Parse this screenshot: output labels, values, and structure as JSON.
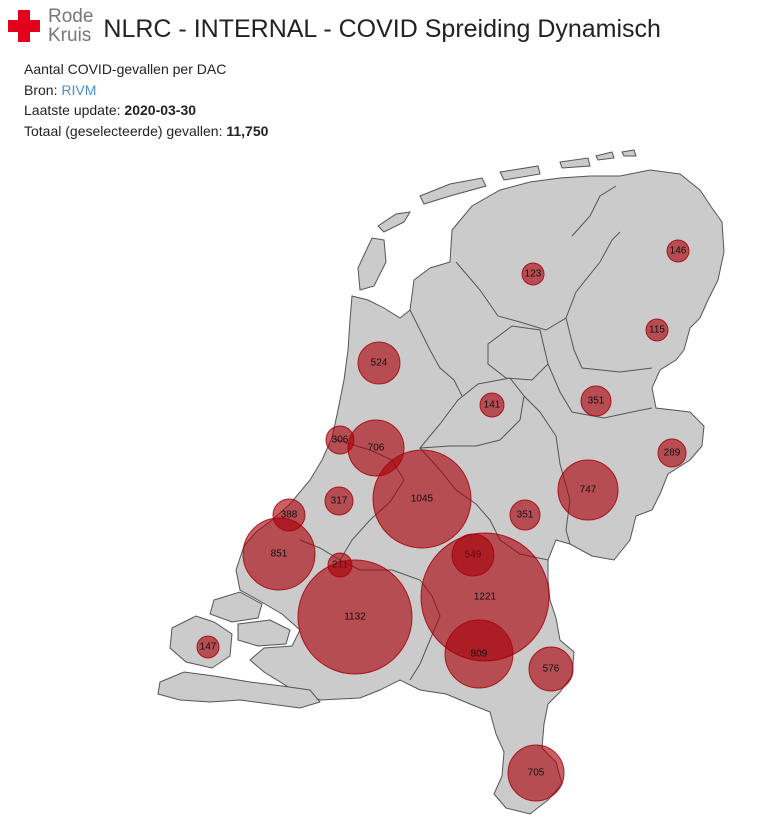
{
  "logo": {
    "line1": "Rode",
    "line2": "Kruis"
  },
  "title": "NLRC - INTERNAL - COVID Spreiding Dynamisch",
  "info": {
    "subtitle": "Aantal COVID-gevallen per DAC",
    "source_label": "Bron: ",
    "source_link": "RIVM",
    "update_label": "Laatste update: ",
    "update_value": "2020-03-30",
    "total_label": "Totaal (geselecteerde) gevallen: ",
    "total_value": "11,750"
  },
  "colors": {
    "bubble": "#a8000a",
    "land": "#cbcbcb",
    "link": "#4a8fd4",
    "brand": "#e3001b"
  },
  "map_data": {
    "unit": "cases",
    "regions": [
      {
        "id": "r1",
        "value": "123"
      },
      {
        "id": "r2",
        "value": "146"
      },
      {
        "id": "r3",
        "value": "115"
      },
      {
        "id": "r4",
        "value": "524"
      },
      {
        "id": "r5",
        "value": "141"
      },
      {
        "id": "r6",
        "value": "351"
      },
      {
        "id": "r7",
        "value": "306"
      },
      {
        "id": "r8",
        "value": "706"
      },
      {
        "id": "r9",
        "value": "289"
      },
      {
        "id": "r10",
        "value": "747"
      },
      {
        "id": "r11",
        "value": "317"
      },
      {
        "id": "r12",
        "value": "1045"
      },
      {
        "id": "r13",
        "value": "388"
      },
      {
        "id": "r14",
        "value": "351"
      },
      {
        "id": "r15",
        "value": "851"
      },
      {
        "id": "r16",
        "value": "549"
      },
      {
        "id": "r17",
        "value": "211"
      },
      {
        "id": "r18",
        "value": "1221"
      },
      {
        "id": "r19",
        "value": "1132"
      },
      {
        "id": "r20",
        "value": "147"
      },
      {
        "id": "r21",
        "value": "809"
      },
      {
        "id": "r22",
        "value": "576"
      },
      {
        "id": "r23",
        "value": "705"
      }
    ]
  }
}
